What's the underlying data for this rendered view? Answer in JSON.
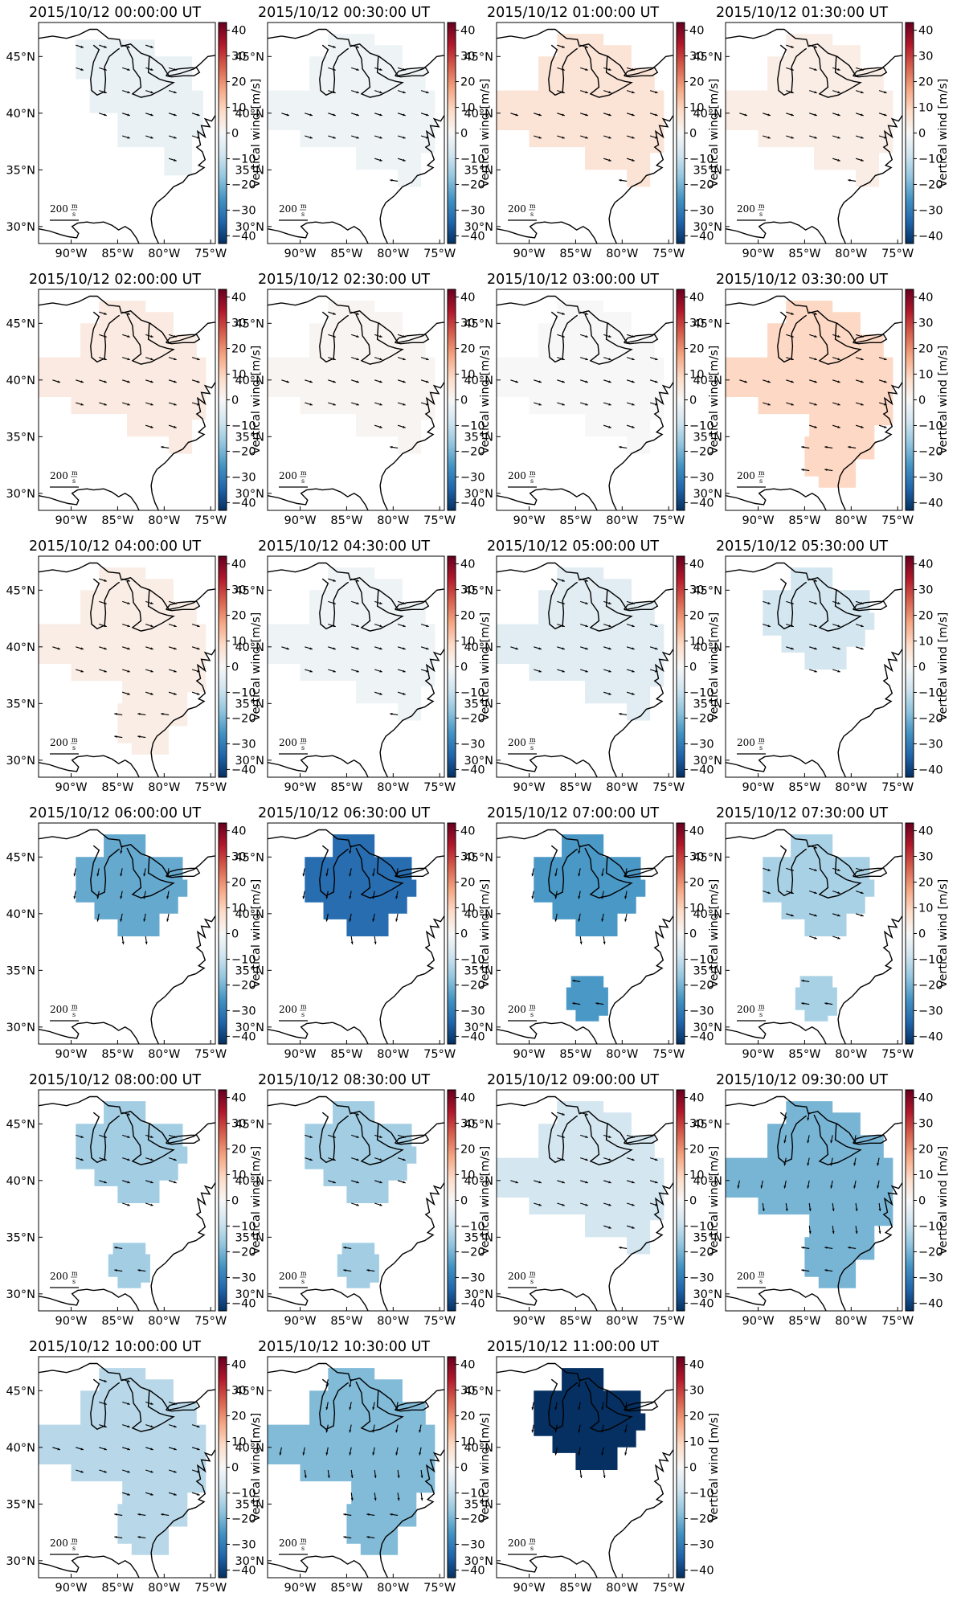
{
  "chart_data": {
    "type": "heatmap",
    "panel_type": "map with wind vectors",
    "colorbar_label": "Vertical wind [m/s]",
    "colormap": "RdBu_r",
    "colorbar_range": [
      -43,
      43
    ],
    "colorbar_ticks": [
      "40",
      "30",
      "20",
      "10",
      "0",
      "−10",
      "−20",
      "−30",
      "−40"
    ],
    "lat_ticks": [
      "45°N",
      "40°N",
      "35°N",
      "30°N"
    ],
    "lon_ticks": [
      "90°W",
      "85°W",
      "80°W",
      "75°W"
    ],
    "map_extent": {
      "lon": [
        -93.5,
        -74.5
      ],
      "lat": [
        28.5,
        48.0
      ]
    },
    "scale_value": "200",
    "scale_unit_num": "m",
    "scale_unit_den": "s",
    "grid": false,
    "frames": [
      {
        "title": "2015/10/12 00:00:00 UT",
        "value": -3,
        "region": "north"
      },
      {
        "title": "2015/10/12 00:30:00 UT",
        "value": -2,
        "region": "wide"
      },
      {
        "title": "2015/10/12 01:00:00 UT",
        "value": 6,
        "region": "wide"
      },
      {
        "title": "2015/10/12 01:30:00 UT",
        "value": 3,
        "region": "wide"
      },
      {
        "title": "2015/10/12 02:00:00 UT",
        "value": 4,
        "region": "wide"
      },
      {
        "title": "2015/10/12 02:30:00 UT",
        "value": 1,
        "region": "wide"
      },
      {
        "title": "2015/10/12 03:00:00 UT",
        "value": 0,
        "region": "wide"
      },
      {
        "title": "2015/10/12 03:30:00 UT",
        "value": 9,
        "region": "wide_south"
      },
      {
        "title": "2015/10/12 04:00:00 UT",
        "value": 3,
        "region": "wide_south"
      },
      {
        "title": "2015/10/12 04:30:00 UT",
        "value": -2,
        "region": "wide"
      },
      {
        "title": "2015/10/12 05:00:00 UT",
        "value": -5,
        "region": "wide"
      },
      {
        "title": "2015/10/12 05:30:00 UT",
        "value": -8,
        "region": "lakes_small"
      },
      {
        "title": "2015/10/12 06:00:00 UT",
        "value": -22,
        "region": "lakes_small"
      },
      {
        "title": "2015/10/12 06:30:00 UT",
        "value": -33,
        "region": "lakes_small"
      },
      {
        "title": "2015/10/12 07:00:00 UT",
        "value": -25,
        "region": "lakes_with_south_blob"
      },
      {
        "title": "2015/10/12 07:30:00 UT",
        "value": -14,
        "region": "lakes_with_south_blob"
      },
      {
        "title": "2015/10/12 08:00:00 UT",
        "value": -15,
        "region": "lakes_with_south_blob"
      },
      {
        "title": "2015/10/12 08:30:00 UT",
        "value": -15,
        "region": "lakes_with_south_blob"
      },
      {
        "title": "2015/10/12 09:00:00 UT",
        "value": -8,
        "region": "wide"
      },
      {
        "title": "2015/10/12 09:30:00 UT",
        "value": -20,
        "region": "wide_south"
      },
      {
        "title": "2015/10/12 10:00:00 UT",
        "value": -12,
        "region": "wide_south"
      },
      {
        "title": "2015/10/12 10:30:00 UT",
        "value": -19,
        "region": "wide_south"
      },
      {
        "title": "2015/10/12 11:00:00 UT",
        "value": -43,
        "region": "lakes_small"
      }
    ]
  }
}
